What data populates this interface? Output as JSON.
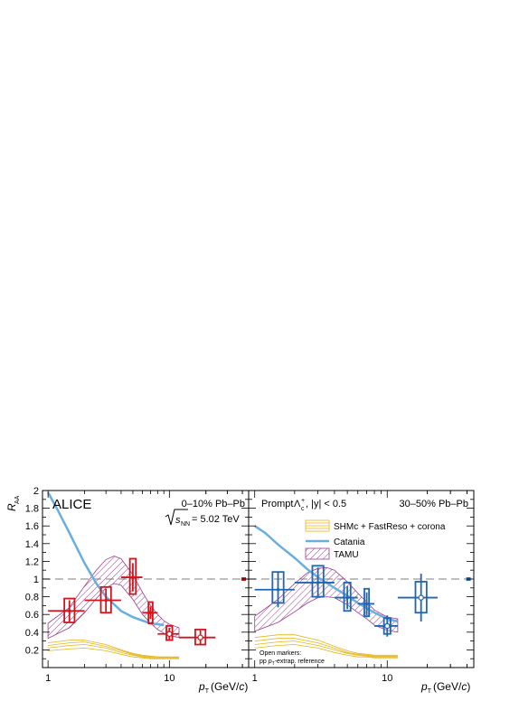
{
  "chart_data": [
    {
      "type": "scatter",
      "panel": "left",
      "experiment": "ALICE",
      "centrality": "0–10% Pb–Pb",
      "energy_prefix": "= 5.02 TeV",
      "ylabel": "R",
      "ylabel_sub": "AA",
      "xlabel_tail": "(GeV/",
      "xlabel_unit": "c",
      "xlabel_close": ")",
      "xscale": "log",
      "xlim": [
        0.9,
        45
      ],
      "ylim": [
        0,
        2
      ],
      "x_ticks": [
        {
          "v": 1,
          "label": "1"
        },
        {
          "v": 10,
          "label": "10"
        }
      ],
      "y_ticks": [
        {
          "v": 0.2,
          "label": "0.2"
        },
        {
          "v": 0.4,
          "label": "0.4"
        },
        {
          "v": 0.6,
          "label": "0.6"
        },
        {
          "v": 0.8,
          "label": "0.8"
        },
        {
          "v": 1,
          "label": "1"
        },
        {
          "v": 1.2,
          "label": "1.2"
        },
        {
          "v": 1.4,
          "label": "1.4"
        },
        {
          "v": 1.6,
          "label": "1.6"
        },
        {
          "v": 1.8,
          "label": "1.8"
        },
        {
          "v": 2,
          "label": "2"
        }
      ],
      "color": "#d3141c",
      "points": [
        {
          "x": 1.5,
          "xlo": 1.0,
          "xhi": 2.0,
          "y": 0.64,
          "stat": 0.12,
          "syst_lo": 0.51,
          "syst_hi": 0.78,
          "open": false
        },
        {
          "x": 3.0,
          "xlo": 2.0,
          "xhi": 4.0,
          "y": 0.76,
          "stat": 0.13,
          "syst_lo": 0.62,
          "syst_hi": 0.91,
          "open": false
        },
        {
          "x": 5.0,
          "xlo": 4.0,
          "xhi": 6.0,
          "y": 1.02,
          "stat": 0.16,
          "syst_lo": 0.83,
          "syst_hi": 1.23,
          "open": false
        },
        {
          "x": 7.0,
          "xlo": 6.0,
          "xhi": 8.0,
          "y": 0.62,
          "stat": 0.07,
          "syst_lo": 0.5,
          "syst_hi": 0.74,
          "open": false
        },
        {
          "x": 10.0,
          "xlo": 8.0,
          "xhi": 12.0,
          "y": 0.38,
          "stat": 0.07,
          "syst_lo": 0.31,
          "syst_hi": 0.47,
          "open": true
        },
        {
          "x": 18.0,
          "xlo": 12.0,
          "xhi": 24.0,
          "y": 0.34,
          "stat": 0.08,
          "syst_lo": 0.26,
          "syst_hi": 0.43,
          "open": true
        }
      ],
      "norm_box": {
        "x": 41,
        "y": 1.0,
        "half": 0.02
      },
      "catania": {
        "x": [
          1.0,
          1.2,
          1.5,
          2.0,
          2.5,
          3.0,
          4.0,
          5.0,
          6.0,
          7.0,
          8.0,
          9.0
        ],
        "y": [
          1.98,
          1.78,
          1.52,
          1.18,
          0.95,
          0.8,
          0.64,
          0.57,
          0.53,
          0.5,
          0.49,
          0.48
        ]
      },
      "tamu": {
        "x": [
          1.0,
          1.5,
          2.0,
          2.5,
          3.0,
          3.5,
          4.0,
          5.0,
          6.0,
          7.0,
          8.0,
          9.0,
          10.0,
          12.0
        ],
        "lo": [
          0.33,
          0.45,
          0.62,
          0.78,
          0.9,
          0.95,
          0.93,
          0.77,
          0.6,
          0.5,
          0.43,
          0.39,
          0.36,
          0.34
        ],
        "hi": [
          0.5,
          0.68,
          0.92,
          1.1,
          1.22,
          1.26,
          1.23,
          1.05,
          0.85,
          0.7,
          0.6,
          0.53,
          0.49,
          0.45
        ]
      },
      "shm": {
        "x": [
          1.0,
          1.5,
          2.0,
          3.0,
          4.0,
          5.0,
          6.0,
          7.0,
          8.0,
          10.0,
          12.0
        ],
        "curves": [
          [
            0.28,
            0.31,
            0.31,
            0.26,
            0.2,
            0.16,
            0.14,
            0.13,
            0.12,
            0.12,
            0.12
          ],
          [
            0.25,
            0.28,
            0.29,
            0.24,
            0.19,
            0.15,
            0.13,
            0.12,
            0.12,
            0.11,
            0.11
          ],
          [
            0.22,
            0.25,
            0.26,
            0.22,
            0.17,
            0.14,
            0.12,
            0.11,
            0.11,
            0.11,
            0.11
          ],
          [
            0.19,
            0.21,
            0.22,
            0.19,
            0.15,
            0.12,
            0.11,
            0.1,
            0.1,
            0.1,
            0.1
          ]
        ]
      }
    },
    {
      "type": "scatter",
      "panel": "right",
      "title_prefix": "Prompt",
      "particle": "Λ",
      "particle_sub": "c",
      "particle_sup": "+",
      "cut": ", |y| < 0.5",
      "centrality": "30–50% Pb–Pb",
      "xlabel_tail": "(GeV/",
      "xlabel_unit": "c",
      "xlabel_close": ")",
      "xscale": "log",
      "xlim": [
        0.9,
        45
      ],
      "ylim": [
        0,
        2
      ],
      "x_ticks": [
        {
          "v": 1,
          "label": "1"
        },
        {
          "v": 10,
          "label": "10"
        }
      ],
      "color": "#1f66b4",
      "points": [
        {
          "x": 1.5,
          "xlo": 1.0,
          "xhi": 2.0,
          "y": 0.88,
          "stat": 0.2,
          "syst_lo": 0.73,
          "syst_hi": 1.08,
          "open": false
        },
        {
          "x": 3.0,
          "xlo": 2.0,
          "xhi": 4.0,
          "y": 0.96,
          "stat": 0.17,
          "syst_lo": 0.8,
          "syst_hi": 1.15,
          "open": false
        },
        {
          "x": 5.0,
          "xlo": 4.0,
          "xhi": 6.0,
          "y": 0.79,
          "stat": 0.13,
          "syst_lo": 0.64,
          "syst_hi": 0.96,
          "open": false
        },
        {
          "x": 7.0,
          "xlo": 6.0,
          "xhi": 8.0,
          "y": 0.72,
          "stat": 0.13,
          "syst_lo": 0.58,
          "syst_hi": 0.89,
          "open": false
        },
        {
          "x": 10.0,
          "xlo": 8.0,
          "xhi": 12.0,
          "y": 0.47,
          "stat": 0.12,
          "syst_lo": 0.38,
          "syst_hi": 0.56,
          "open": true
        },
        {
          "x": 18.0,
          "xlo": 12.0,
          "xhi": 24.0,
          "y": 0.79,
          "stat": 0.27,
          "syst_lo": 0.62,
          "syst_hi": 0.97,
          "open": true
        }
      ],
      "norm_box": {
        "x": 41,
        "y": 1.0,
        "half": 0.02
      },
      "catania": {
        "x": [
          1.0,
          1.2,
          1.5,
          2.0,
          2.5,
          3.0,
          4.0,
          5.0,
          6.0,
          7.0,
          8.0,
          10.0,
          12.0
        ],
        "y": [
          1.6,
          1.52,
          1.39,
          1.24,
          1.11,
          1.02,
          0.9,
          0.81,
          0.73,
          0.67,
          0.62,
          0.55,
          0.52
        ]
      },
      "tamu": {
        "x": [
          1.0,
          1.5,
          2.0,
          2.5,
          3.0,
          3.5,
          4.0,
          5.0,
          6.0,
          7.0,
          8.0,
          10.0,
          12.0
        ],
        "lo": [
          0.41,
          0.51,
          0.63,
          0.73,
          0.79,
          0.8,
          0.79,
          0.71,
          0.62,
          0.55,
          0.48,
          0.42,
          0.4
        ],
        "hi": [
          0.58,
          0.77,
          0.95,
          1.07,
          1.12,
          1.13,
          1.1,
          0.97,
          0.84,
          0.74,
          0.65,
          0.57,
          0.55
        ]
      },
      "shm": {
        "x": [
          1.0,
          1.5,
          2.0,
          3.0,
          4.0,
          5.0,
          6.0,
          7.0,
          8.0,
          10.0,
          12.0
        ],
        "curves": [
          [
            0.34,
            0.37,
            0.37,
            0.31,
            0.24,
            0.19,
            0.16,
            0.15,
            0.14,
            0.14,
            0.14
          ],
          [
            0.3,
            0.33,
            0.33,
            0.28,
            0.22,
            0.17,
            0.15,
            0.14,
            0.13,
            0.13,
            0.13
          ],
          [
            0.26,
            0.29,
            0.3,
            0.25,
            0.2,
            0.16,
            0.14,
            0.13,
            0.12,
            0.12,
            0.12
          ],
          [
            0.22,
            0.25,
            0.26,
            0.22,
            0.17,
            0.14,
            0.12,
            0.12,
            0.11,
            0.11,
            0.11
          ]
        ]
      },
      "legend": {
        "placement": "top-right",
        "entries": [
          {
            "kind": "shm",
            "label": "SHMc + FastReso + corona"
          },
          {
            "kind": "catania",
            "label": "Catania"
          },
          {
            "kind": "tamu",
            "label": "TAMU"
          }
        ]
      },
      "footnote_line1": "Open markers:",
      "footnote_line2_pp": "pp ",
      "footnote_line2_rest": "-extrap. reference"
    }
  ],
  "x_var": "p",
  "x_var_sub": "T",
  "sqrt_var": "s",
  "sqrt_sub": "NN",
  "colors": {
    "catania": "#6aaee0",
    "tamu": "#9a3d8a",
    "shm": "#e8b418",
    "unity": "#999999"
  }
}
